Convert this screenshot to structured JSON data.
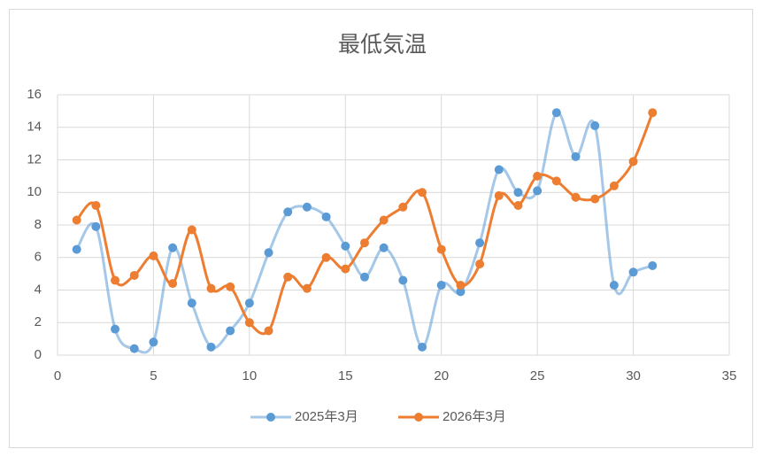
{
  "chart_data": {
    "type": "line",
    "title": "最低気温",
    "x": [
      1,
      2,
      3,
      4,
      5,
      6,
      7,
      8,
      9,
      10,
      11,
      12,
      13,
      14,
      15,
      16,
      17,
      18,
      19,
      20,
      21,
      22,
      23,
      24,
      25,
      26,
      27,
      28,
      29,
      30,
      31
    ],
    "series": [
      {
        "name": "2025年3月",
        "color": "#5b9bd5",
        "values": [
          6.5,
          7.9,
          1.6,
          0.4,
          0.8,
          6.6,
          3.2,
          0.5,
          1.5,
          3.2,
          6.3,
          8.8,
          9.1,
          8.5,
          6.7,
          4.8,
          6.6,
          4.6,
          0.5,
          4.3,
          3.9,
          6.9,
          11.4,
          10.0,
          10.1,
          14.9,
          12.2,
          14.1,
          4.3,
          5.1,
          5.5
        ]
      },
      {
        "name": "2026年3月",
        "color": "#ed7d31",
        "values": [
          8.3,
          9.2,
          4.6,
          4.9,
          6.1,
          4.4,
          7.7,
          4.1,
          4.2,
          2.0,
          1.5,
          4.8,
          4.1,
          6.0,
          5.3,
          6.9,
          8.3,
          9.1,
          10.0,
          6.5,
          4.3,
          5.6,
          9.8,
          9.2,
          11.0,
          10.7,
          9.7,
          9.6,
          10.4,
          11.9,
          14.9
        ]
      }
    ],
    "xlim": [
      0,
      35
    ],
    "xticks": [
      0,
      5,
      10,
      15,
      20,
      25,
      30,
      35
    ],
    "ylim": [
      0,
      16
    ],
    "yticks": [
      0,
      2,
      4,
      6,
      8,
      10,
      12,
      14,
      16
    ],
    "grid": true,
    "smooth": true,
    "legend": "bottom"
  }
}
